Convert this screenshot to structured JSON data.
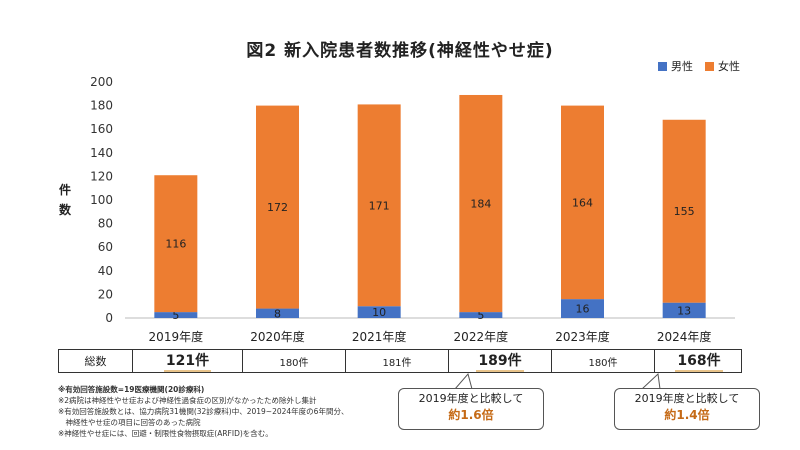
{
  "title": "図2 新入院患者数推移(神経性やせ症)",
  "colors": {
    "male": "#4472c4",
    "female": "#ed7d31"
  },
  "chart_data": {
    "type": "bar",
    "stacked": true,
    "categories": [
      "2019年度",
      "2020年度",
      "2021年度",
      "2022年度",
      "2023年度",
      "2024年度"
    ],
    "series": [
      {
        "name": "男性",
        "values": [
          5,
          8,
          10,
          5,
          16,
          13
        ]
      },
      {
        "name": "女性",
        "values": [
          116,
          172,
          171,
          184,
          164,
          155
        ]
      }
    ],
    "ylabel": "件数",
    "ylim": [
      0,
      200
    ],
    "yticks": [
      0,
      20,
      40,
      60,
      80,
      100,
      120,
      140,
      160,
      180,
      200
    ],
    "grid": false,
    "legend": "top-right"
  },
  "table": {
    "header": "総数",
    "cells": [
      "121件",
      "180件",
      "181件",
      "189件",
      "180件",
      "168件"
    ]
  },
  "notes": [
    "※有効回答施設数=19医療機関(20診療科)",
    "※2病院は神経性やせ症および神経性過食症の区別がなかったため除外し集計",
    "※有効回答施設数とは、協力病院31機関(32診療科)中、2019~2024年度の6年間分、",
    "　神経性やせ症の項目に回答のあった病院",
    "※神経性やせ症には、回避・制限性食物摂取症(ARFID)を含む。"
  ],
  "callouts": [
    {
      "line1": "2019年度と比較して",
      "line2": "約1.6倍"
    },
    {
      "line1": "2019年度と比較して",
      "line2": "約1.4倍"
    }
  ]
}
